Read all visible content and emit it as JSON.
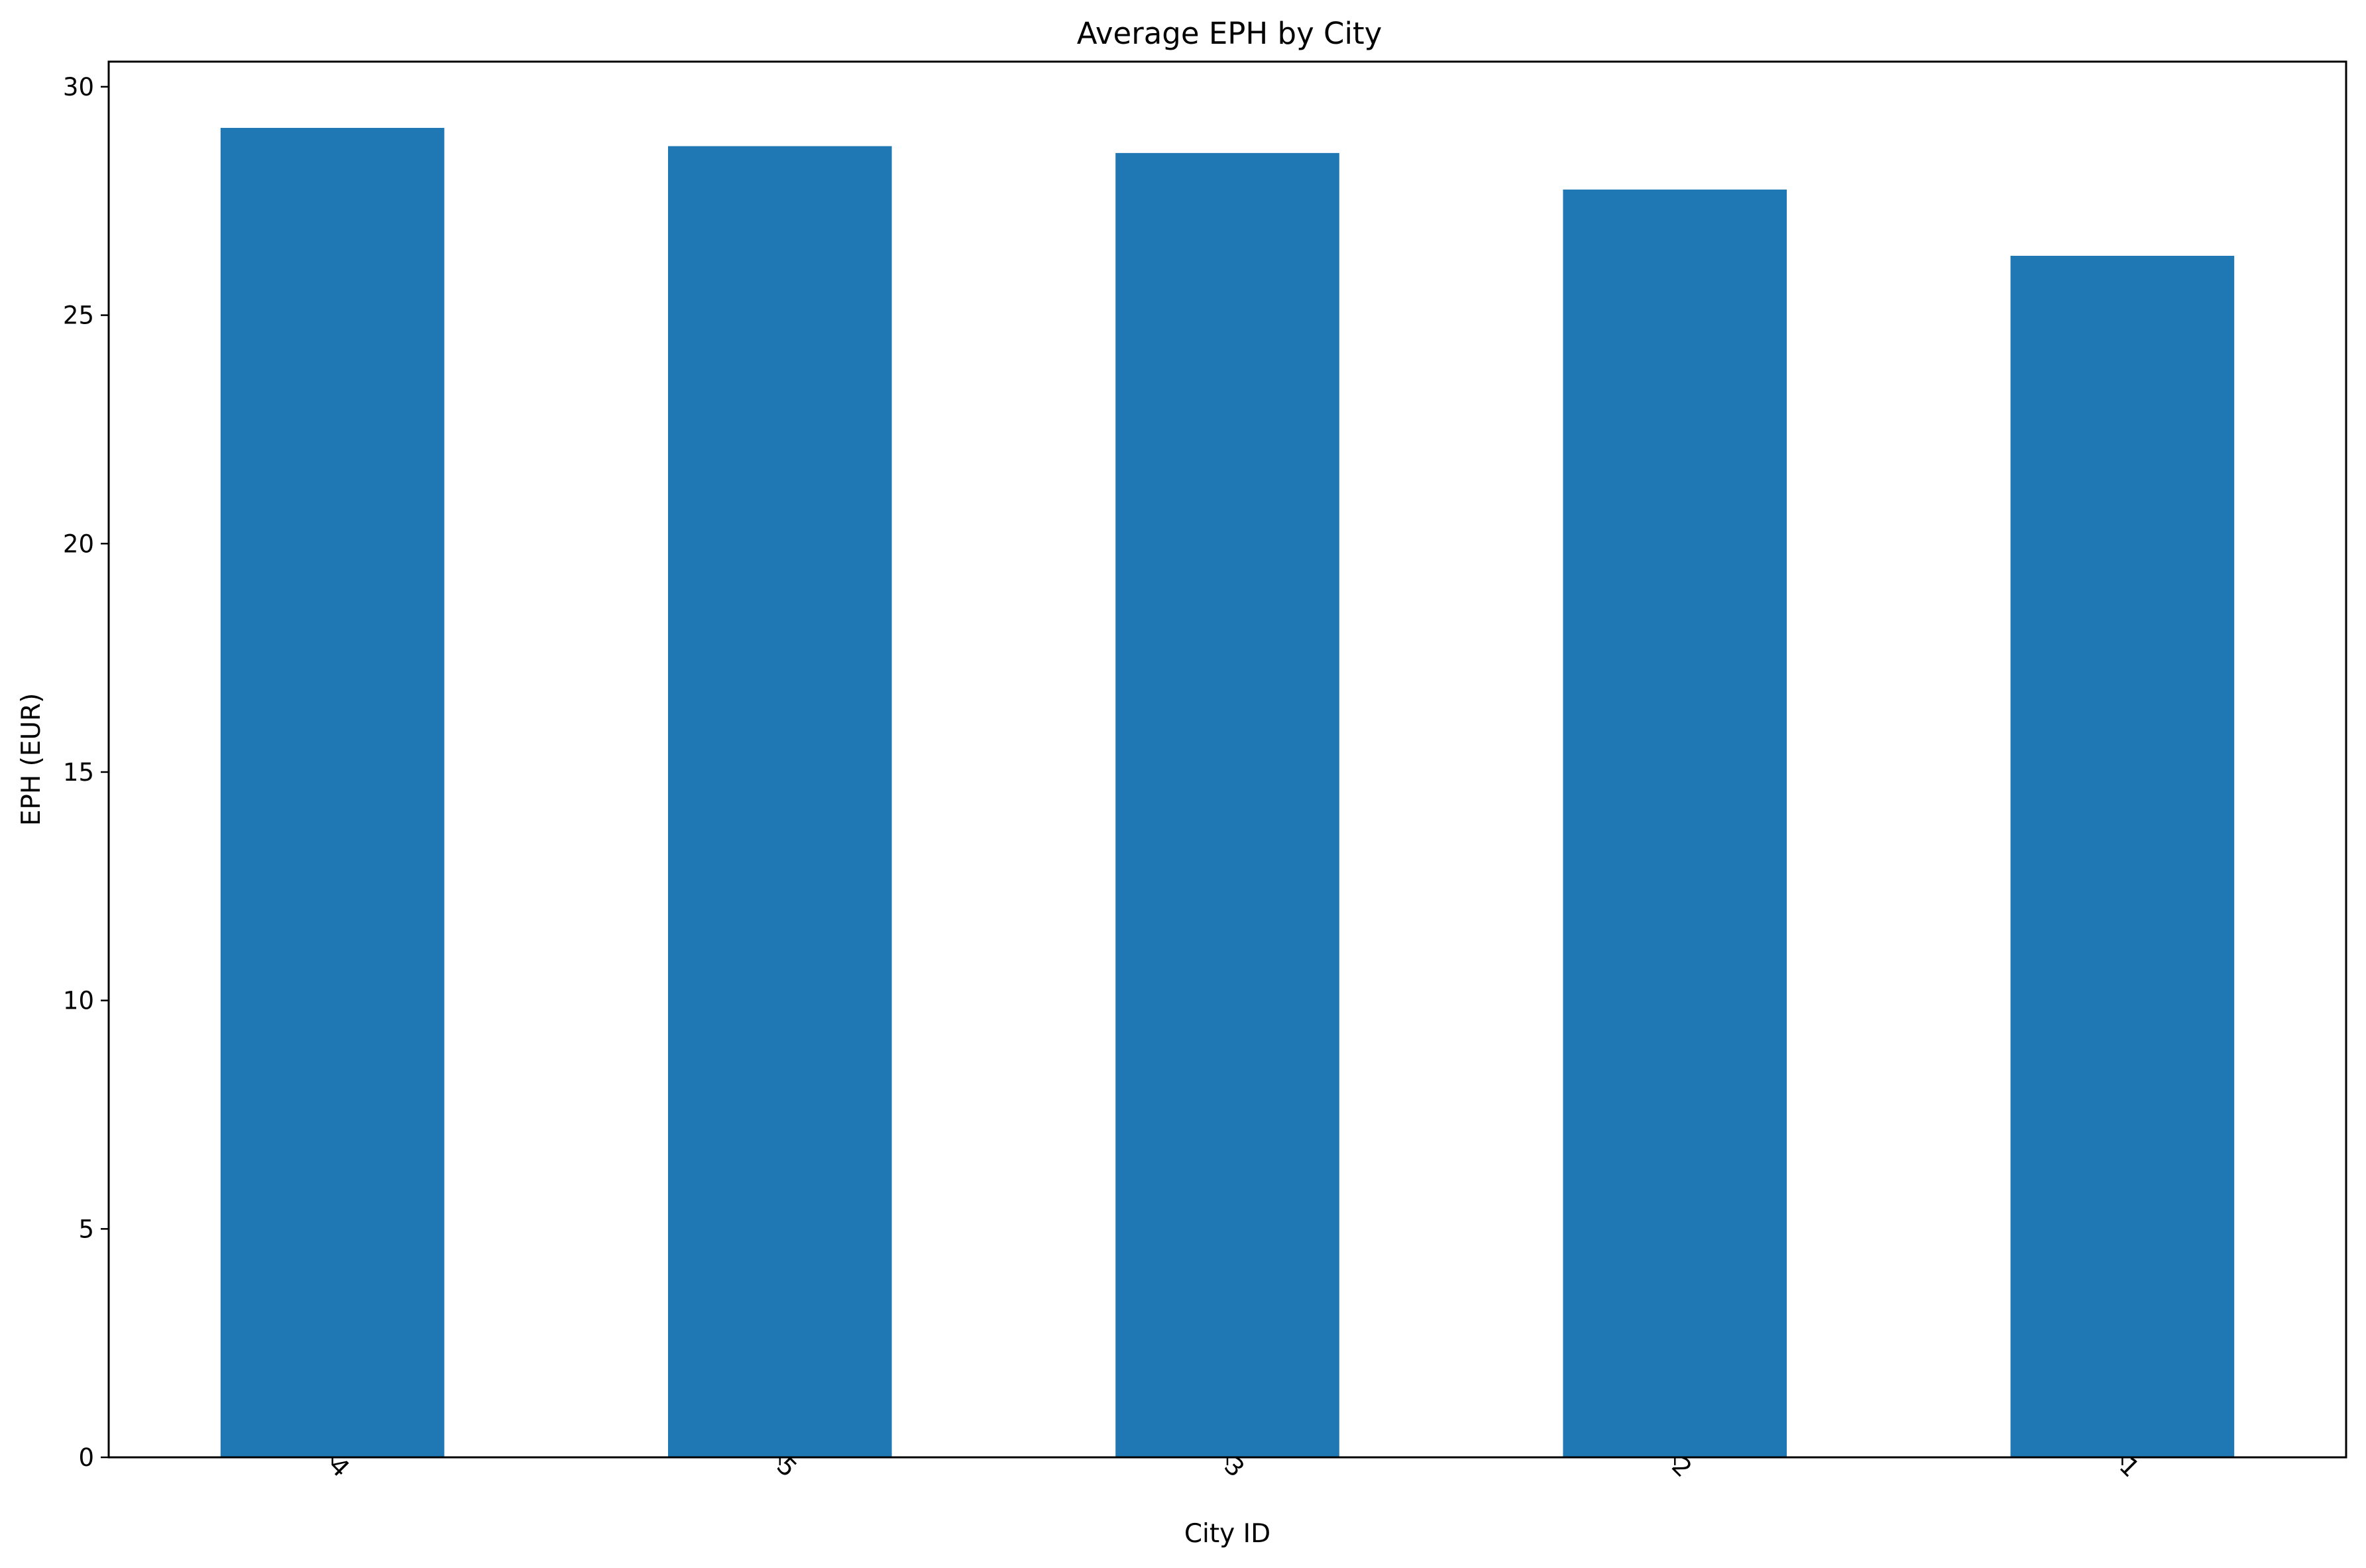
{
  "chart_data": {
    "type": "bar",
    "title": "Average EPH by City",
    "xlabel": "City ID",
    "ylabel": "EPH (EUR)",
    "categories": [
      "4",
      "5",
      "3",
      "2",
      "1"
    ],
    "values": [
      29.1,
      28.7,
      28.55,
      27.75,
      26.3
    ],
    "ylim": [
      0,
      30.55
    ],
    "yticks": [
      0,
      5,
      10,
      15,
      20,
      25,
      30
    ],
    "ytick_labels": [
      "0",
      "5",
      "10",
      "15",
      "20",
      "25",
      "30"
    ],
    "xtick_rotation_deg": 45,
    "grid": false,
    "legend": "none",
    "bar_color": "#1f77b4"
  }
}
